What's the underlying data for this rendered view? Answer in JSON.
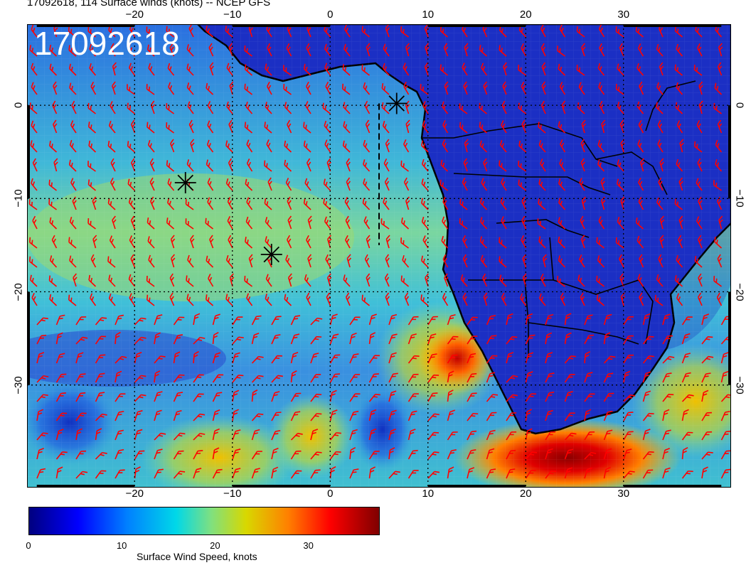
{
  "header": {
    "title": "17092618, 114 Surface winds (knots) -- NCEP GFS",
    "timestamp_overlay": "17092618"
  },
  "map": {
    "lon_range": [
      -31,
      41
    ],
    "lat_range": [
      -41,
      8.7
    ],
    "lon_ticks_top": [
      "−20",
      "−10",
      "0",
      "10",
      "20",
      "30"
    ],
    "lon_ticks_bottom": [
      "−20",
      "−10",
      "0",
      "10",
      "20",
      "30"
    ],
    "lat_ticks_left": [
      "0",
      "−10",
      "−20",
      "−30"
    ],
    "lat_ticks_right": [
      "0",
      "−10",
      "−20",
      "−30"
    ],
    "grid_lons": [
      -20,
      -10,
      0,
      10,
      20,
      30
    ],
    "grid_lats": [
      0,
      -10,
      -20,
      -30
    ],
    "grid": "dotted",
    "storm_markers": [
      {
        "lon": 6.8,
        "lat": 0.2
      },
      {
        "lon": -14.8,
        "lat": -8.3
      },
      {
        "lon": -6.0,
        "lat": -16.0
      }
    ],
    "track_line": {
      "lon": 5.0,
      "lat": [
        0.2,
        -15.0
      ]
    },
    "colors": {
      "barb": "#ff0000",
      "land": "#1a2fc0",
      "coast": "#000000"
    }
  },
  "colorbar": {
    "label": "Surface Wind Speed, knots",
    "ticks": [
      "0",
      "10",
      "20",
      "30"
    ],
    "range": [
      0,
      37.5
    ]
  }
}
